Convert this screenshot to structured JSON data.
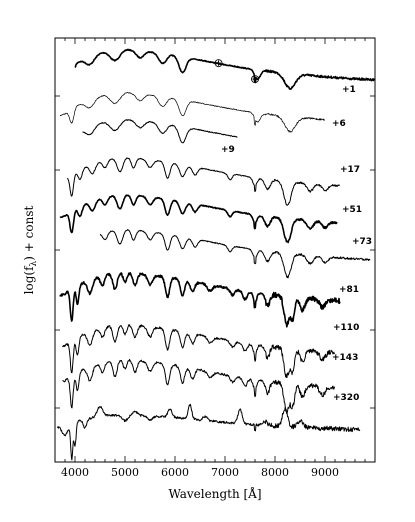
{
  "chart_data": {
    "type": "line",
    "xlabel": "Wavelength [Å]",
    "ylabel": "log(f_λ) + const",
    "ylabel_parts": {
      "prefix": "log(f",
      "sub": "λ",
      "suffix": ") + const"
    },
    "xlim": [
      3600,
      10000
    ],
    "x_ticks": [
      4000,
      5000,
      6000,
      7000,
      8000,
      9000
    ],
    "x_tick_labels": [
      "4000",
      "5000",
      "6000",
      "7000",
      "8000",
      "9000"
    ],
    "grid": false,
    "legend": "none",
    "annotations": [
      {
        "symbol": "⊕",
        "x": 6870
      },
      {
        "symbol": "⊕",
        "x": 7600
      }
    ],
    "series": [
      {
        "label": "+1",
        "x_range": [
          4000,
          10000
        ],
        "style": "thick"
      },
      {
        "label": "+6",
        "x_range": [
          3700,
          9000
        ],
        "style": "thin"
      },
      {
        "label": "+9",
        "x_range": [
          4150,
          7250
        ],
        "style": "normal"
      },
      {
        "label": "+17",
        "x_range": [
          3850,
          9300
        ],
        "style": "normal"
      },
      {
        "label": "+51",
        "x_range": [
          3700,
          9250
        ],
        "style": "thick"
      },
      {
        "label": "+73",
        "x_range": [
          4500,
          9900
        ],
        "style": "normal"
      },
      {
        "label": "+81",
        "x_range": [
          3700,
          9300
        ],
        "style": "thick"
      },
      {
        "label": "+110",
        "x_range": [
          3750,
          9200
        ],
        "style": "normal"
      },
      {
        "label": "+143",
        "x_range": [
          3750,
          9200
        ],
        "style": "normal"
      },
      {
        "label": "+320",
        "x_range": [
          3650,
          9700
        ],
        "style": "normal"
      }
    ]
  }
}
